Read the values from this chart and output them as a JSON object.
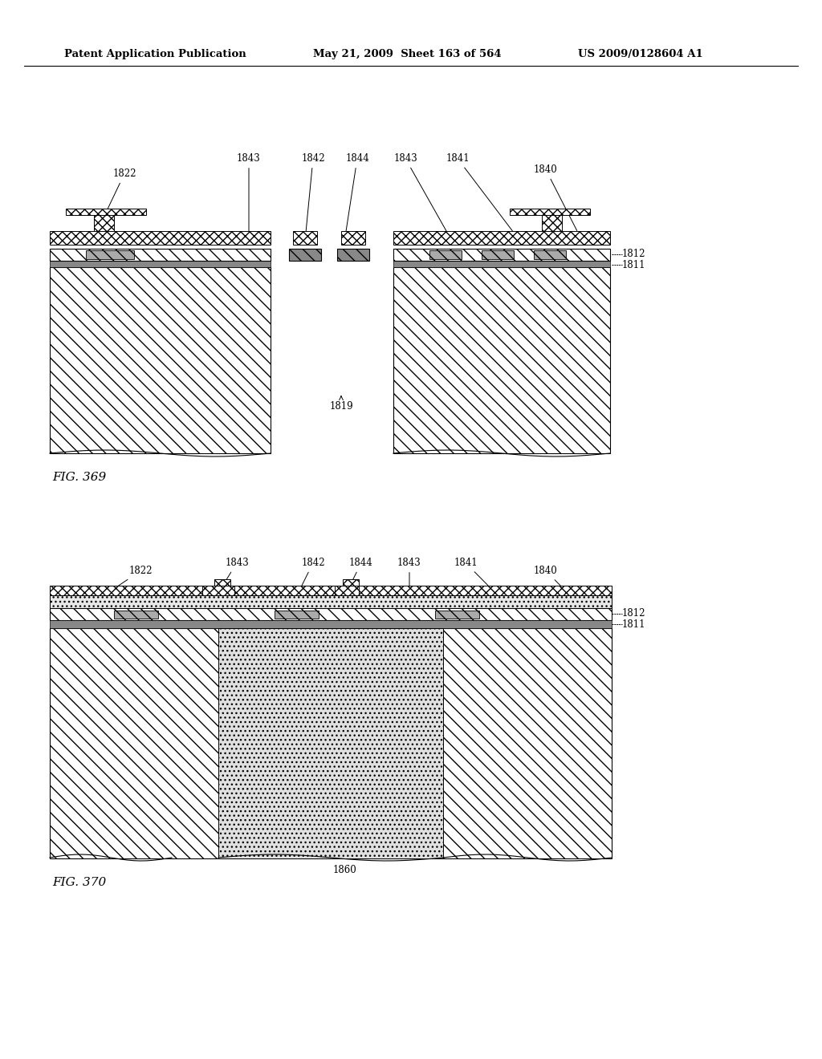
{
  "header_left": "Patent Application Publication",
  "header_mid": "May 21, 2009  Sheet 163 of 564",
  "header_right": "US 2009/0128604 A1",
  "fig1_label": "FIG. 369",
  "fig2_label": "FIG. 370",
  "background": "#ffffff"
}
